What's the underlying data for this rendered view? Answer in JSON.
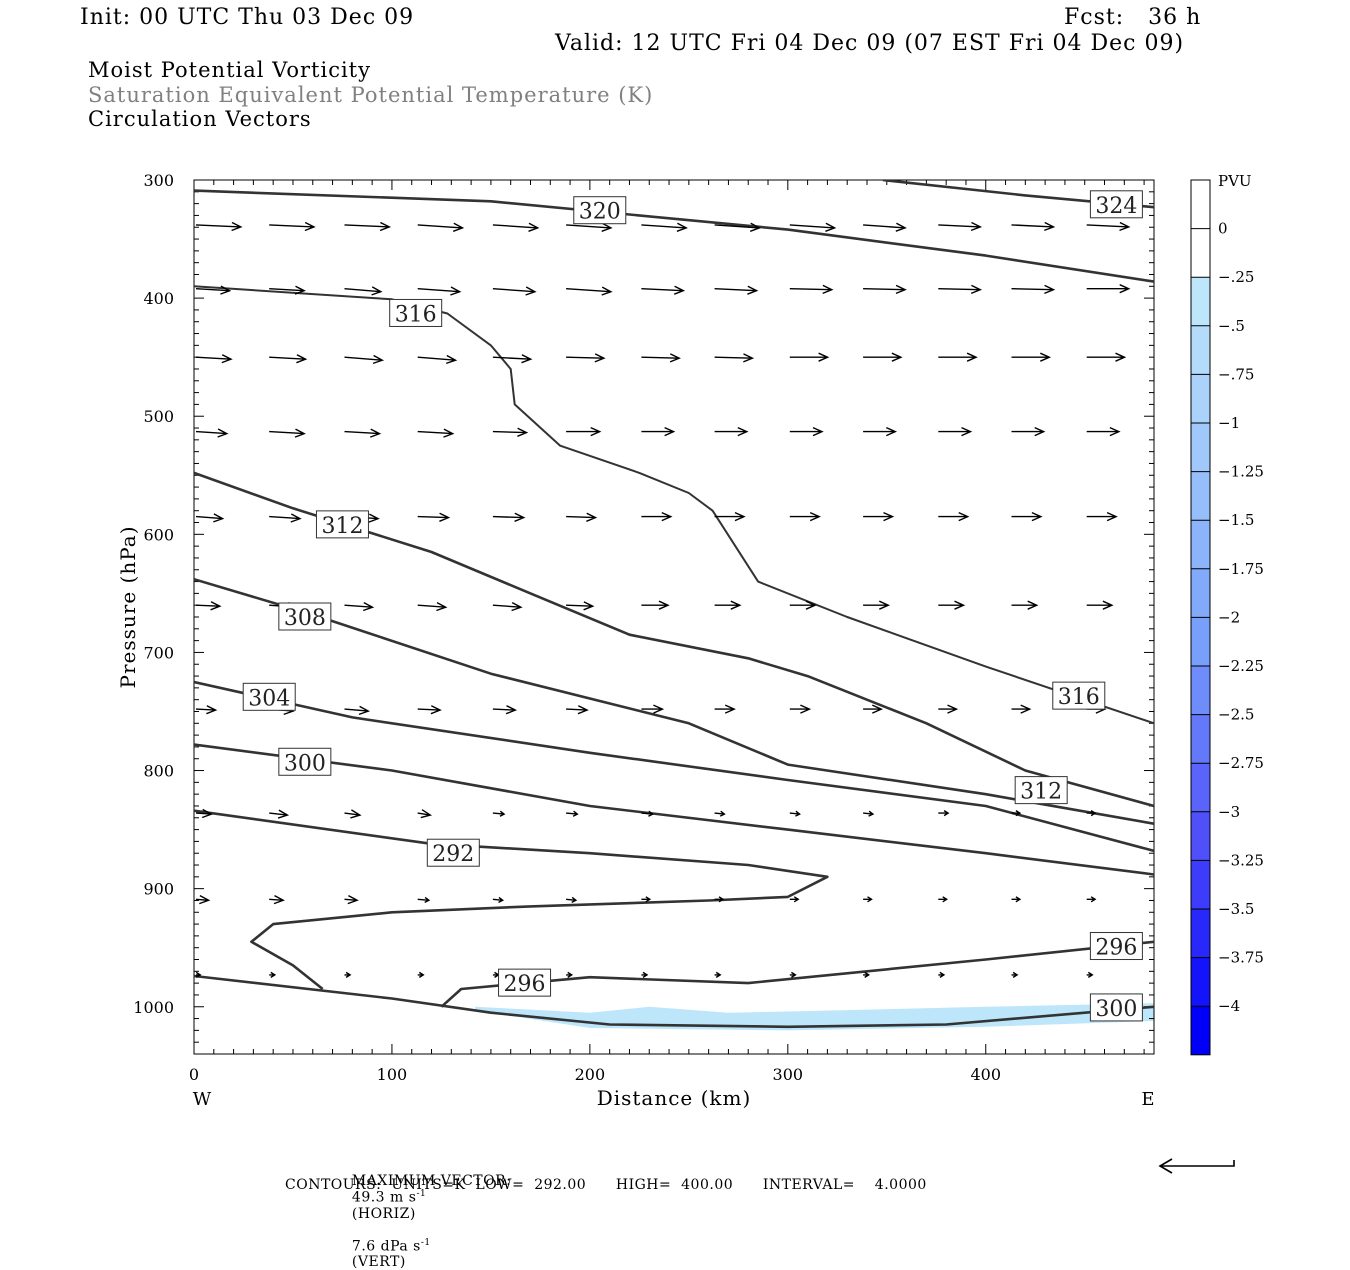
{
  "header": {
    "init": "Init: 00 UTC Thu 03 Dec 09",
    "fcst": "Fcst:   36 h",
    "valid": "Valid: 12 UTC Fri 04 Dec 09 (07 EST Fri 04 Dec 09)",
    "fields": [
      "Moist Potential Vorticity",
      "Saturation Equivalent Potential Temperature (K)",
      "Circulation Vectors"
    ]
  },
  "colors": {
    "contour": "#333333",
    "pv_fill": "#bde6fa",
    "field2_text": "#808080"
  },
  "chart_data": {
    "type": "line",
    "xlabel": "Distance (km)",
    "ylabel": "Pressure (hPa)",
    "xlim": [
      0,
      485
    ],
    "ylim": [
      300,
      1040
    ],
    "x_ticks": [
      0,
      100,
      200,
      300,
      400
    ],
    "y_ticks": [
      300,
      400,
      500,
      600,
      700,
      800,
      900,
      1000
    ],
    "direction_left": "W",
    "direction_right": "E",
    "contour_unit": "K",
    "contours": [
      {
        "level": "320",
        "points": [
          [
            0,
            309
          ],
          [
            150,
            318
          ],
          [
            300,
            342
          ],
          [
            400,
            364
          ],
          [
            485,
            386
          ]
        ]
      },
      {
        "level": "324",
        "points": [
          [
            348,
            300
          ],
          [
            420,
            313
          ],
          [
            485,
            323
          ]
        ]
      },
      {
        "level": "316",
        "points": [
          [
            0,
            390
          ],
          [
            100,
            401
          ],
          [
            128,
            413
          ],
          [
            150,
            440
          ],
          [
            160,
            460
          ],
          [
            162,
            490
          ],
          [
            185,
            525
          ],
          [
            225,
            548
          ],
          [
            250,
            565
          ],
          [
            262,
            580
          ],
          [
            285,
            640
          ],
          [
            330,
            670
          ],
          [
            400,
            712
          ],
          [
            485,
            760
          ]
        ]
      },
      {
        "level": "312",
        "points": [
          [
            0,
            548
          ],
          [
            50,
            578
          ],
          [
            120,
            615
          ],
          [
            170,
            650
          ],
          [
            220,
            685
          ],
          [
            280,
            705
          ],
          [
            310,
            720
          ],
          [
            370,
            760
          ],
          [
            420,
            800
          ],
          [
            485,
            830
          ]
        ]
      },
      {
        "level": "308",
        "points": [
          [
            0,
            638
          ],
          [
            60,
            668
          ],
          [
            150,
            718
          ],
          [
            250,
            760
          ],
          [
            300,
            795
          ],
          [
            400,
            820
          ],
          [
            485,
            845
          ]
        ]
      },
      {
        "level": "304",
        "points": [
          [
            0,
            725
          ],
          [
            80,
            755
          ],
          [
            200,
            785
          ],
          [
            300,
            808
          ],
          [
            400,
            830
          ],
          [
            485,
            868
          ]
        ]
      },
      {
        "level": "300",
        "points": [
          [
            0,
            778
          ],
          [
            100,
            800
          ],
          [
            200,
            830
          ],
          [
            300,
            850
          ],
          [
            400,
            870
          ],
          [
            485,
            888
          ]
        ]
      },
      {
        "level": "292",
        "points": [
          [
            0,
            834
          ],
          [
            120,
            862
          ],
          [
            200,
            870
          ],
          [
            280,
            880
          ],
          [
            320,
            890
          ],
          [
            300,
            907
          ],
          [
            260,
            910
          ],
          [
            170,
            915
          ],
          [
            100,
            920
          ],
          [
            40,
            930
          ],
          [
            29,
            945
          ],
          [
            50,
            965
          ],
          [
            65,
            985
          ]
        ]
      },
      {
        "level": "296",
        "points": [
          [
            125,
            1000
          ],
          [
            135,
            985
          ],
          [
            200,
            975
          ],
          [
            280,
            980
          ],
          [
            400,
            960
          ],
          [
            485,
            945
          ]
        ]
      },
      {
        "level": "300",
        "points": [
          [
            0,
            974
          ],
          [
            100,
            993
          ],
          [
            150,
            1005
          ],
          [
            210,
            1015
          ],
          [
            300,
            1017
          ],
          [
            380,
            1015
          ],
          [
            485,
            1000
          ]
        ]
      }
    ],
    "contour_labels": [
      {
        "text": "320",
        "x": 205,
        "p": 326
      },
      {
        "text": "324",
        "x": 466,
        "p": 321
      },
      {
        "text": "316",
        "x": 112,
        "p": 413
      },
      {
        "text": "316",
        "x": 447,
        "p": 737
      },
      {
        "text": "312",
        "x": 75,
        "p": 592
      },
      {
        "text": "312",
        "x": 428,
        "p": 817
      },
      {
        "text": "308",
        "x": 56,
        "p": 670
      },
      {
        "text": "304",
        "x": 38,
        "p": 738
      },
      {
        "text": "300",
        "x": 56,
        "p": 793
      },
      {
        "text": "300",
        "x": 466,
        "p": 1001
      },
      {
        "text": "292",
        "x": 131,
        "p": 870
      },
      {
        "text": "296",
        "x": 167,
        "p": 980
      },
      {
        "text": "296",
        "x": 466,
        "p": 949
      }
    ],
    "pv_region": {
      "top": [
        [
          142,
          1000
        ],
        [
          200,
          1005
        ],
        [
          230,
          1000
        ],
        [
          270,
          1005
        ],
        [
          300,
          1004
        ],
        [
          400,
          1000
        ],
        [
          485,
          997
        ]
      ],
      "bottom": [
        [
          485,
          1012
        ],
        [
          400,
          1017
        ],
        [
          300,
          1020
        ],
        [
          200,
          1018
        ],
        [
          142,
          1003
        ]
      ]
    },
    "vectors": {
      "x": [
        0,
        37,
        75,
        112,
        150,
        187,
        225,
        262,
        300,
        337,
        375,
        412,
        450
      ],
      "rows": [
        {
          "p": 338,
          "u": [
            32,
            32,
            32,
            32,
            32,
            32,
            32,
            32,
            32,
            30,
            30,
            30,
            30
          ],
          "w": [
            2,
            2,
            2,
            3,
            3,
            3,
            3,
            3,
            3,
            3,
            2,
            2,
            2
          ]
        },
        {
          "p": 392,
          "u": [
            24,
            25,
            26,
            30,
            30,
            32,
            30,
            30,
            30,
            30,
            30,
            30,
            30
          ],
          "w": [
            2,
            2,
            3,
            3,
            3,
            3,
            2,
            2,
            1,
            1,
            1,
            1,
            0
          ]
        },
        {
          "p": 450,
          "u": [
            25,
            26,
            27,
            27,
            27,
            27,
            27,
            27,
            27,
            27,
            27,
            27,
            27
          ],
          "w": [
            2,
            2,
            3,
            3,
            2,
            1,
            1,
            1,
            0,
            0,
            0,
            0,
            0
          ]
        },
        {
          "p": 513,
          "u": [
            22,
            25,
            25,
            25,
            24,
            24,
            23,
            23,
            23,
            23,
            23,
            23,
            23
          ],
          "w": [
            2,
            2,
            2,
            2,
            1,
            0,
            0,
            0,
            0,
            0,
            0,
            0,
            0
          ]
        },
        {
          "p": 585,
          "u": [
            19,
            22,
            24,
            22,
            22,
            21,
            21,
            21,
            21,
            21,
            21,
            21,
            21
          ],
          "w": [
            2,
            2,
            2,
            1,
            1,
            1,
            0,
            0,
            0,
            0,
            0,
            0,
            0
          ]
        },
        {
          "p": 660,
          "u": [
            17,
            20,
            20,
            20,
            20,
            19,
            19,
            18,
            18,
            18,
            18,
            18,
            18
          ],
          "w": [
            1,
            2,
            2,
            2,
            2,
            1,
            0,
            0,
            0,
            0,
            0,
            0,
            0
          ]
        },
        {
          "p": 748,
          "u": [
            14,
            17,
            17,
            16,
            16,
            15,
            15,
            14,
            14,
            13,
            13,
            13,
            13
          ],
          "w": [
            1,
            2,
            2,
            1,
            1,
            1,
            0,
            0,
            0,
            0,
            0,
            0,
            0
          ]
        },
        {
          "p": 836,
          "u": [
            11,
            13,
            11,
            9,
            8,
            8,
            8,
            7,
            7,
            7,
            7,
            6,
            6
          ],
          "w": [
            1,
            2,
            2,
            2,
            1,
            1,
            1,
            1,
            1,
            1,
            0,
            0,
            0
          ]
        },
        {
          "p": 909,
          "u": [
            9,
            10,
            9,
            8,
            7,
            7,
            6,
            6,
            6,
            6,
            6,
            6,
            6
          ],
          "w": [
            1,
            1,
            1,
            1,
            1,
            1,
            0,
            0,
            0,
            0,
            0,
            0,
            0
          ]
        },
        {
          "p": 973,
          "u": [
            3,
            4,
            4,
            4,
            4,
            4,
            4,
            4,
            4,
            4,
            4,
            4,
            4
          ],
          "w": [
            0,
            0,
            0,
            0,
            0,
            0,
            0,
            0,
            0,
            0,
            0,
            0,
            0
          ]
        }
      ]
    },
    "colorbar": {
      "unit": "PVU",
      "labels": [
        "0",
        "-.25",
        "-.5",
        "-.75",
        "-1",
        "-1.25",
        "-1.5",
        "-1.75",
        "-2",
        "-2.25",
        "-2.5",
        "-2.75",
        "-3",
        "-3.25",
        "-3.5",
        "-3.75",
        "-4"
      ],
      "colors": [
        "#ffffff",
        "#ffffff",
        "#bde6fa",
        "#b4dcfa",
        "#aad2fa",
        "#a0c8fa",
        "#96befa",
        "#8cb4fa",
        "#82aafa",
        "#78a0fa",
        "#6e8cfa",
        "#6478fa",
        "#5a64fa",
        "#5050fa",
        "#3c3cfa",
        "#2828fa",
        "#1414fa",
        "#0000fa"
      ]
    }
  },
  "footer": {
    "max_vector_label": "MAXIMUM VECTOR:",
    "max_vector_horiz": "49.3 m s",
    "max_vector_horiz_unit": "(HORIZ)",
    "max_vector_vert": "7.6 dPa s",
    "max_vector_vert_unit": "(VERT)",
    "superscript": "-1",
    "contours_text": "CONTOURS:  UNITS=K  LOW=  292.00      HIGH=  400.00      INTERVAL=    4.0000"
  }
}
